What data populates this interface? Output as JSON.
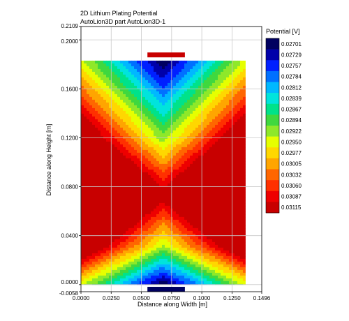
{
  "chart_data": {
    "type": "heatmap",
    "title": "2D Lithium Plating Potential",
    "subtitle": "AutoLion3D part AutoLion3D-1",
    "xlabel": "Distance along Width [m]",
    "ylabel": "Distance along Height [m]",
    "xlim": [
      0.0,
      0.1496
    ],
    "ylim": [
      -0.0058,
      0.2109
    ],
    "x_ticks": [
      "0.0000",
      "0.0250",
      "0.0500",
      "0.0750",
      "0.1000",
      "0.1250",
      "0.1496"
    ],
    "y_ticks": [
      "-0.0058",
      "0.0000",
      "0.0400",
      "0.0800",
      "0.1200",
      "0.1600",
      "0.2000",
      "0.2109"
    ],
    "x_tick_values": [
      0.0,
      0.025,
      0.05,
      0.075,
      0.1,
      0.125,
      0.1496
    ],
    "y_tick_values": [
      -0.0058,
      0.0,
      0.04,
      0.08,
      0.12,
      0.16,
      0.2,
      0.2109
    ],
    "grid": true,
    "region": {
      "x": [
        0.0,
        0.136
      ],
      "y": [
        0.0,
        0.183
      ]
    },
    "colorbar": {
      "title": "Potential [V]",
      "levels": [
        "0.02701",
        "0.02729",
        "0.02757",
        "0.02784",
        "0.02812",
        "0.02839",
        "0.02867",
        "0.02894",
        "0.02922",
        "0.02950",
        "0.02977",
        "0.03005",
        "0.03032",
        "0.03060",
        "0.03087",
        "0.03115"
      ],
      "colors": [
        "#000060",
        "#0000aa",
        "#0020ff",
        "#0070ff",
        "#00b8ff",
        "#00e4dc",
        "#00e28a",
        "#3fd83f",
        "#8ee82a",
        "#e6ff00",
        "#ffd700",
        "#ffa500",
        "#ff6600",
        "#ff3000",
        "#ee0000",
        "#c80000"
      ]
    },
    "tabs": [
      {
        "x": [
          0.055,
          0.086
        ],
        "y": 0.1877,
        "color": "#c80000"
      },
      {
        "x": [
          0.055,
          0.086
        ],
        "y": -0.0038,
        "color": "#000060"
      }
    ]
  }
}
